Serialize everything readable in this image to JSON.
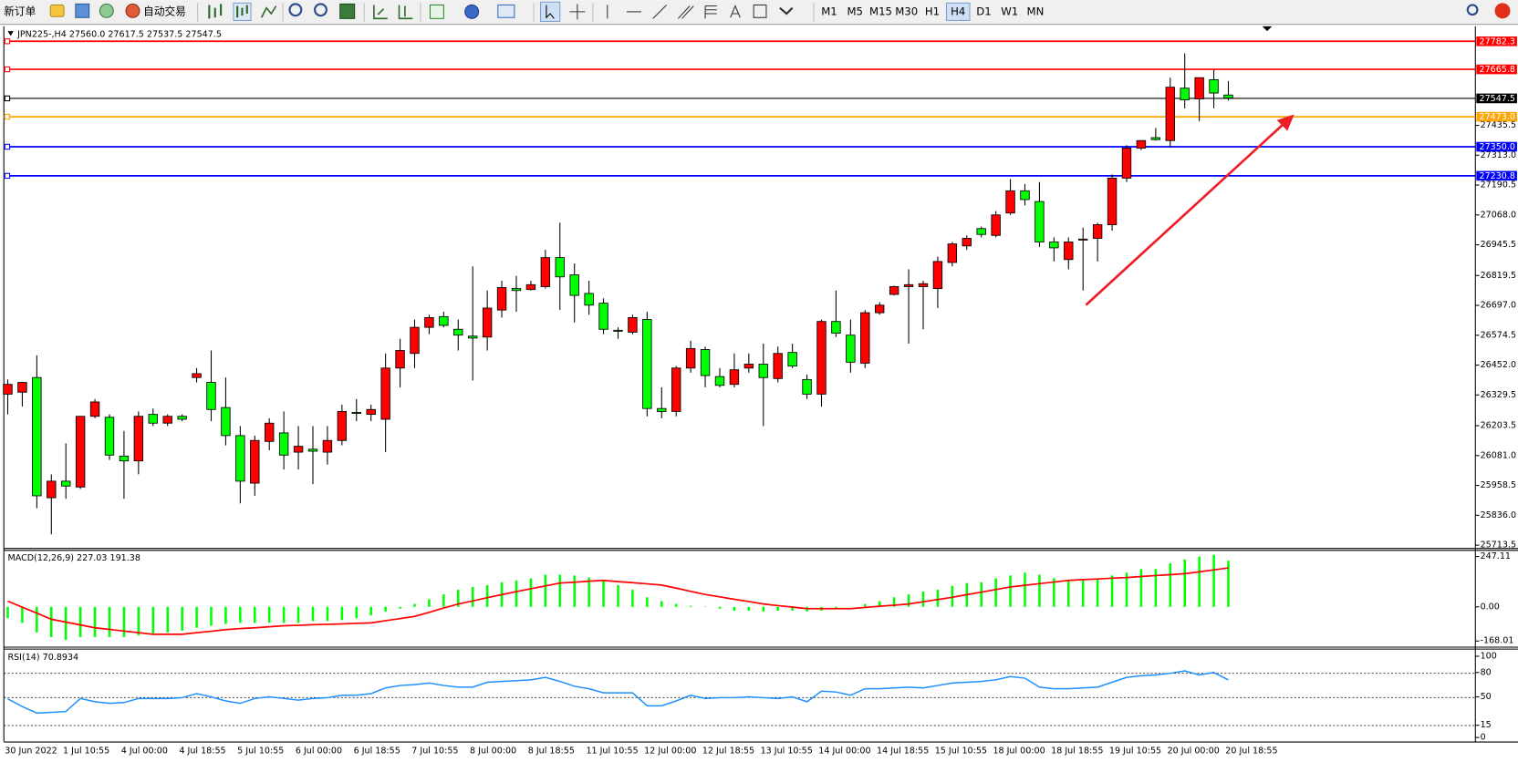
{
  "toolbar": {
    "new_order": "新订单",
    "auto_trading": "自动交易",
    "timeframes": [
      "M1",
      "M5",
      "M15",
      "M30",
      "H1",
      "H4",
      "D1",
      "W1",
      "MN"
    ],
    "active_timeframe": "H4"
  },
  "chart_data": [
    {
      "type": "candlestick",
      "title": "JPN225-,H4",
      "ohlc_labels": [
        "27560.0",
        "27617.5",
        "27537.5",
        "27547.5"
      ],
      "up_color": "#ff0000",
      "down_color": "#00ff00",
      "categories": [
        "30 Jun 2022",
        null,
        null,
        null,
        "1 Jul 10:55",
        null,
        null,
        null,
        "4 Jul 00:00",
        null,
        null,
        null,
        "4 Jul 18:55",
        null,
        null,
        null,
        "5 Jul 10:55",
        null,
        null,
        null,
        "6 Jul 00:00",
        null,
        null,
        null,
        "6 Jul 18:55",
        null,
        null,
        null,
        "7 Jul 10:55",
        null,
        null,
        null,
        "8 Jul 00:00",
        null,
        null,
        null,
        "8 Jul 18:55",
        null,
        null,
        null,
        "11 Jul 10:55",
        null,
        null,
        null,
        "12 Jul 00:00",
        null,
        null,
        null,
        "12 Jul 18:55",
        null,
        null,
        null,
        "13 Jul 10:55",
        null,
        null,
        null,
        "14 Jul 00:00",
        null,
        null,
        null,
        "14 Jul 18:55",
        null,
        null,
        null,
        "15 Jul 10:55",
        null,
        null,
        null,
        "18 Jul 00:00",
        null,
        null,
        null,
        "18 Jul 18:55",
        null,
        null,
        null,
        "19 Jul 10:55",
        null,
        null,
        null,
        "20 Jul 00:00",
        null,
        null,
        null,
        "20 Jul 18:55"
      ],
      "open": [
        26333,
        26341,
        26401,
        25908,
        25976,
        25952,
        26242,
        26238,
        26079,
        26059,
        26250,
        26214,
        26242,
        26401,
        26381,
        26278,
        26163,
        25968,
        26139,
        26174,
        26095,
        26107,
        26095,
        26143,
        26258,
        26250,
        26230,
        26440,
        26500,
        26607,
        26651,
        26599,
        26571,
        26567,
        26678,
        26766,
        26762,
        26774,
        26893,
        26822,
        26746,
        26706,
        26595,
        26587,
        26639,
        26274,
        26262,
        26440,
        26516,
        26405,
        26373,
        26440,
        26456,
        26397,
        26504,
        26393,
        26333,
        26631,
        26575,
        26460,
        26667,
        26742,
        26774,
        26774,
        26766,
        26873,
        26941,
        27012,
        26984,
        27076,
        27167,
        27123,
        26957,
        26885,
        26965,
        26972,
        27028,
        27219,
        27342,
        27385,
        27373,
        27588,
        27544,
        27623,
        27560
      ],
      "high": [
        26393,
        26381,
        26492,
        26004,
        26131,
        26242,
        26313,
        26250,
        26182,
        26262,
        26274,
        26250,
        26250,
        26440,
        26512,
        26401,
        26202,
        26163,
        26234,
        26262,
        26202,
        26202,
        26202,
        26290,
        26313,
        26290,
        26500,
        26560,
        26639,
        26659,
        26671,
        26639,
        26857,
        26758,
        26798,
        26818,
        26798,
        26925,
        27036,
        26869,
        26798,
        26726,
        26607,
        26659,
        26671,
        26361,
        26448,
        26552,
        26528,
        26440,
        26500,
        26500,
        26540,
        26528,
        26540,
        26413,
        26639,
        26758,
        26639,
        26678,
        26710,
        26778,
        26845,
        26798,
        26897,
        26957,
        26984,
        27020,
        27084,
        27215,
        27195,
        27203,
        26976,
        26976,
        27016,
        27036,
        27234,
        27354,
        27373,
        27425,
        27631,
        27731,
        27631,
        27663,
        27617.5
      ],
      "low": [
        26250,
        26282,
        25865,
        25758,
        25904,
        25944,
        26234,
        26063,
        25904,
        26004,
        26202,
        26202,
        26222,
        26381,
        26222,
        26123,
        25885,
        25916,
        26103,
        26024,
        26024,
        25964,
        26044,
        26123,
        26222,
        26222,
        26095,
        26361,
        26440,
        26579,
        26607,
        26512,
        26389,
        26512,
        26647,
        26671,
        26758,
        26766,
        26678,
        26627,
        26659,
        26579,
        26560,
        26579,
        26242,
        26234,
        26242,
        26421,
        26361,
        26361,
        26361,
        26421,
        26202,
        26381,
        26440,
        26313,
        26282,
        26567,
        26421,
        26440,
        26659,
        26738,
        26540,
        26599,
        26686,
        26857,
        26925,
        26976,
        26976,
        27068,
        27107,
        26937,
        26877,
        26845,
        26758,
        26877,
        27004,
        27203,
        27334,
        27373,
        27346,
        27505,
        27453,
        27505,
        27537.5
      ],
      "close": [
        26373,
        26381,
        25916,
        25976,
        25956,
        26242,
        26301,
        26083,
        26059,
        26242,
        26214,
        26242,
        26230,
        26417,
        26270,
        26163,
        25976,
        26143,
        26214,
        26083,
        26119,
        26099,
        26143,
        26262,
        26254,
        26270,
        26440,
        26512,
        26607,
        26647,
        26615,
        26575,
        26563,
        26686,
        26770,
        26758,
        26782,
        26893,
        26814,
        26738,
        26698,
        26599,
        26591,
        26647,
        26274,
        26262,
        26440,
        26520,
        26409,
        26369,
        26433,
        26456,
        26401,
        26500,
        26448,
        26333,
        26631,
        26583,
        26464,
        26667,
        26698,
        26774,
        26782,
        26786,
        26877,
        26949,
        26972,
        26988,
        27068,
        27167,
        27131,
        26957,
        26933,
        26957,
        26969,
        27028,
        27219,
        27342,
        27373,
        27377,
        27592,
        27540,
        27631,
        27568,
        27547.5
      ],
      "ylim": [
        25706,
        27830
      ],
      "yticks": [
        {
          "value": 27435.5,
          "label": "27435.5"
        },
        {
          "value": 27313,
          "label": "27313.0"
        },
        {
          "value": 27190.5,
          "label": "27190.5"
        },
        {
          "value": 27068,
          "label": "27068.0"
        },
        {
          "value": 26945.5,
          "label": "26945.5"
        },
        {
          "value": 26819.5,
          "label": "26819.5"
        },
        {
          "value": 26697,
          "label": "26697.0"
        },
        {
          "value": 26574.5,
          "label": "26574.5"
        },
        {
          "value": 26452,
          "label": "26452.0"
        },
        {
          "value": 26329.5,
          "label": "26329.5"
        },
        {
          "value": 26203.5,
          "label": "26203.5"
        },
        {
          "value": 26081,
          "label": "26081.0"
        },
        {
          "value": 25958.5,
          "label": "25958.5"
        },
        {
          "value": 25836,
          "label": "25836.0"
        },
        {
          "value": 25713.5,
          "label": "25713.5"
        }
      ],
      "levels": [
        {
          "value": 27782.3,
          "label": "27782.3",
          "color": "#ff0000"
        },
        {
          "value": 27665.8,
          "label": "27665.8",
          "color": "#ff0000"
        },
        {
          "value": 27547.5,
          "label": "27547.5",
          "color": "#000000"
        },
        {
          "value": 27473,
          "label": "27473.0",
          "color": "#ffa500"
        },
        {
          "value": 27350,
          "label": "27350.0",
          "color": "#0000ff"
        },
        {
          "value": 27230.8,
          "label": "27230.8",
          "color": "#0000ff"
        }
      ]
    },
    {
      "type": "macd",
      "title": "MACD(12,26,9)",
      "histogram": {
        "color": "#00ff00",
        "values": [
          -56,
          -79,
          -126,
          -149,
          -163,
          -149,
          -149,
          -149,
          -149,
          -140,
          -135,
          -126,
          -117,
          -103,
          -93,
          -84,
          -79,
          -79,
          -79,
          -79,
          -79,
          -70,
          -70,
          -65,
          -56,
          -42,
          -23,
          -9,
          14,
          37,
          61,
          84,
          98,
          107,
          121,
          130,
          140,
          158,
          158,
          154,
          144,
          130,
          107,
          84,
          47,
          28,
          14,
          5,
          2,
          -9,
          -19,
          -19,
          -23,
          -19,
          -19,
          -23,
          -19,
          -9,
          1,
          14,
          28,
          47,
          61,
          75,
          84,
          103,
          117,
          121,
          140,
          154,
          168,
          158,
          140,
          130,
          130,
          140,
          154,
          168,
          186,
          186,
          214,
          233,
          247,
          256,
          227.03
        ]
      },
      "signal": {
        "color": "#ff0000",
        "values": [
          28,
          -2,
          -31,
          -61,
          -75,
          -89,
          -103,
          -111,
          -119,
          -127,
          -135,
          -135,
          -135,
          -127,
          -120,
          -112,
          -107,
          -103,
          -98,
          -93,
          -91,
          -88,
          -86,
          -84,
          -81,
          -79,
          -68,
          -58,
          -47,
          -27,
          -6,
          14,
          29,
          45,
          60,
          75,
          89,
          103,
          117,
          121,
          126,
          130,
          124,
          119,
          113,
          107,
          92,
          76,
          61,
          49,
          37,
          26,
          14,
          6,
          -1,
          -9,
          -9,
          -9,
          -9,
          -3,
          3,
          8,
          14,
          25,
          36,
          47,
          60,
          72,
          85,
          98,
          106,
          114,
          122,
          130,
          134,
          137,
          141,
          144,
          149,
          154,
          158,
          163,
          172,
          182,
          191.38
        ]
      },
      "ylim": [
        -196,
        280
      ],
      "yticks": [
        247.11,
        {
          "value": 0,
          "label": "0.00"
        },
        -168.01
      ]
    },
    {
      "type": "line",
      "title": "RSI(14)",
      "color": "#1e90ff",
      "values": [
        47.6,
        38,
        30,
        31,
        32,
        48,
        44,
        42,
        43,
        48,
        48,
        48,
        49,
        54,
        50,
        45,
        42,
        48,
        50,
        48,
        46,
        48,
        49,
        52,
        52,
        54,
        61,
        64,
        65,
        67,
        64,
        62,
        62,
        68,
        69,
        70,
        71,
        74,
        69,
        63,
        60,
        55,
        55,
        55,
        39,
        39,
        45,
        52,
        48,
        49,
        49,
        50,
        49,
        48,
        50,
        44,
        57,
        56,
        52,
        60,
        60,
        61,
        62,
        61,
        64,
        67,
        68,
        69,
        71,
        75,
        73,
        62,
        60,
        60,
        61,
        62,
        68,
        74,
        76,
        77,
        79,
        82,
        77,
        80,
        70.8934
      ],
      "ylim": [
        -5,
        107
      ],
      "yticks": [
        100,
        80,
        50,
        15,
        0
      ],
      "levels": [
        80,
        50,
        15
      ]
    }
  ]
}
